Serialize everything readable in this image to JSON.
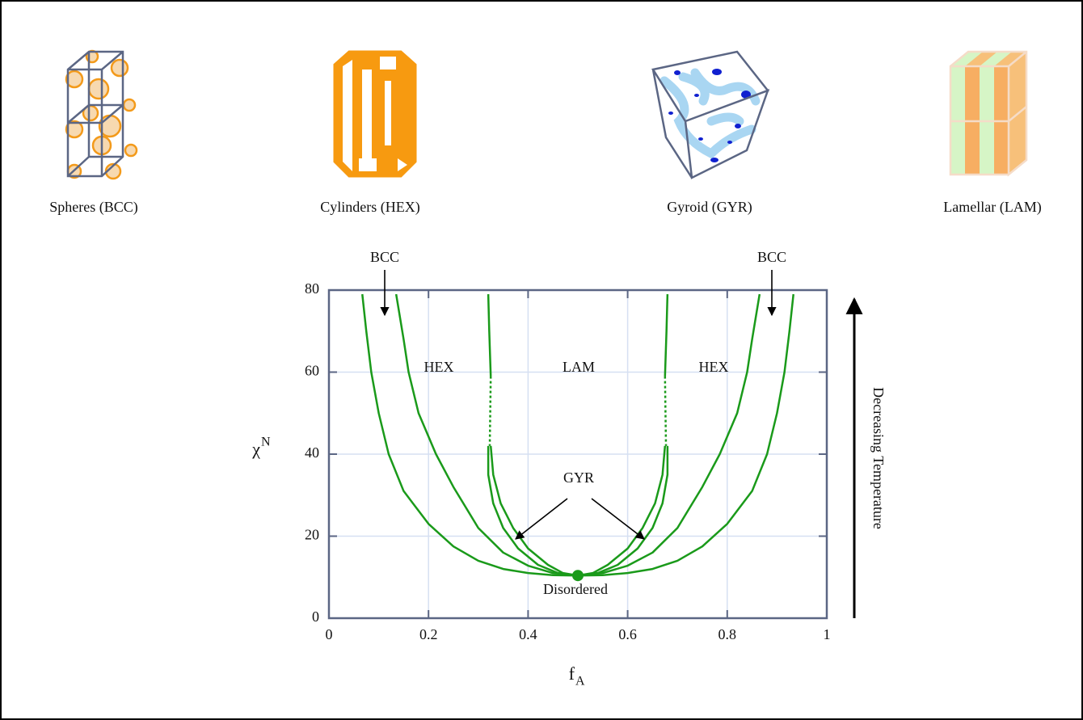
{
  "structures": [
    "Spheres (BCC)",
    "Cylinders (HEX)",
    "Gyroid (GYR)",
    "Lamellar (LAM)"
  ],
  "chart_data": {
    "type": "line",
    "xlabel": "f",
    "xlabel_sub": "A",
    "ylabel": "χ",
    "ylabel_sup": "N",
    "xlim": [
      0,
      1
    ],
    "ylim": [
      0,
      80
    ],
    "xticks": [
      0,
      0.2,
      0.4,
      0.6,
      0.8,
      1
    ],
    "yticks": [
      0,
      20,
      40,
      60,
      80
    ],
    "grid": true,
    "grid_color": "#d6e0f2",
    "series": [
      {
        "color": "#1a9a1a",
        "dashed": false,
        "x": [
          0.067,
          0.075,
          0.085,
          0.1,
          0.12,
          0.15,
          0.2,
          0.25,
          0.3,
          0.35,
          0.4,
          0.45,
          0.5,
          0.55,
          0.6,
          0.65,
          0.7,
          0.75,
          0.8,
          0.85,
          0.88,
          0.9,
          0.915,
          0.925,
          0.933
        ],
        "values": [
          79,
          70,
          60,
          50,
          40,
          31,
          23,
          17.5,
          14,
          12,
          11,
          10.5,
          10.4,
          10.5,
          11,
          12,
          14,
          17.5,
          23,
          31,
          40,
          50,
          60,
          70,
          79
        ]
      },
      {
        "color": "#1a9a1a",
        "dashed": false,
        "x": [
          0.135,
          0.15,
          0.16,
          0.18,
          0.215,
          0.25,
          0.3,
          0.35,
          0.4,
          0.45,
          0.5,
          0.55,
          0.6,
          0.65,
          0.7,
          0.75,
          0.785,
          0.82,
          0.84,
          0.85,
          0.865
        ],
        "values": [
          79,
          68,
          60,
          50,
          40,
          32,
          22,
          16,
          12.8,
          11,
          10.4,
          11,
          12.8,
          16,
          22,
          32,
          40,
          50,
          60,
          68,
          79
        ]
      },
      {
        "color": "#1a9a1a",
        "dashed": false,
        "x": [
          0.32,
          0.32,
          0.33,
          0.35,
          0.38,
          0.42,
          0.46,
          0.5,
          0.54,
          0.58,
          0.62,
          0.65,
          0.67,
          0.68,
          0.68
        ],
        "values": [
          42,
          35,
          28,
          22,
          17,
          13,
          11,
          10.4,
          11,
          13,
          17,
          22,
          28,
          35,
          42
        ]
      },
      {
        "color": "#1a9a1a",
        "dashed": false,
        "x": [
          0.325,
          0.33,
          0.345,
          0.37,
          0.4,
          0.44,
          0.47,
          0.5,
          0.53,
          0.56,
          0.6,
          0.63,
          0.655,
          0.67,
          0.675
        ],
        "values": [
          42,
          35,
          28,
          22,
          17,
          13,
          11,
          10.4,
          11,
          13,
          17,
          22,
          28,
          35,
          42
        ]
      },
      {
        "color": "#1a9a1a",
        "dashed": false,
        "x": [
          0.32,
          0.322,
          0.325
        ],
        "values": [
          79,
          70,
          59
        ]
      },
      {
        "color": "#1a9a1a",
        "dashed": true,
        "x": [
          0.325,
          0.324,
          0.323
        ],
        "values": [
          59,
          50,
          42
        ]
      },
      {
        "color": "#1a9a1a",
        "dashed": false,
        "x": [
          0.68,
          0.678,
          0.675
        ],
        "values": [
          79,
          70,
          59
        ]
      },
      {
        "color": "#1a9a1a",
        "dashed": true,
        "x": [
          0.675,
          0.676,
          0.677
        ],
        "values": [
          59,
          50,
          42
        ]
      }
    ],
    "critical_point": {
      "x": 0.5,
      "y": 10.4,
      "color": "#1a9a1a"
    },
    "annotations": [
      "BCC",
      "BCC",
      "HEX",
      "LAM",
      "HEX",
      "GYR",
      "Disordered"
    ],
    "side_label": "Decreasing Temperature"
  }
}
